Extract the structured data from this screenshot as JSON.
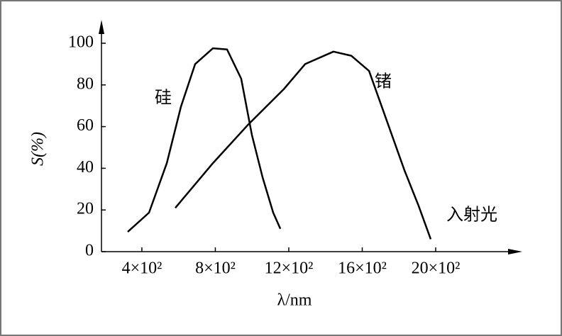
{
  "chart_data": {
    "type": "line",
    "x_label": "λ/nm",
    "y_label": "S(%)",
    "annotation": "入射光",
    "xlim": [
      180,
      2470
    ],
    "ylim": [
      0,
      107
    ],
    "xticks": [
      {
        "value": 400,
        "label": "4×10²"
      },
      {
        "value": 800,
        "label": "8×10²"
      },
      {
        "value": 1200,
        "label": "12×10²"
      },
      {
        "value": 1600,
        "label": "16×10²"
      },
      {
        "value": 2000,
        "label": "20×10²"
      }
    ],
    "yticks": [
      0,
      20,
      40,
      60,
      80,
      100
    ],
    "series": [
      {
        "name": "硅",
        "color": "#000000",
        "x": [
          323,
          439,
          536,
          613,
          690,
          787,
          864,
          941,
          999,
          1057,
          1115,
          1154
        ],
        "values": [
          9.5,
          18.7,
          42.5,
          69.7,
          90,
          97.6,
          97,
          83,
          56,
          35.7,
          18.7,
          11
        ]
      },
      {
        "name": "锗",
        "color": "#000000",
        "x": [
          582,
          787,
          979,
          1173,
          1289,
          1443,
          1540,
          1637,
          1733,
          1830,
          1907,
          1973
        ],
        "values": [
          21,
          42.5,
          61,
          78,
          90,
          96,
          94,
          86.7,
          63,
          39,
          22,
          6
        ]
      }
    ]
  }
}
